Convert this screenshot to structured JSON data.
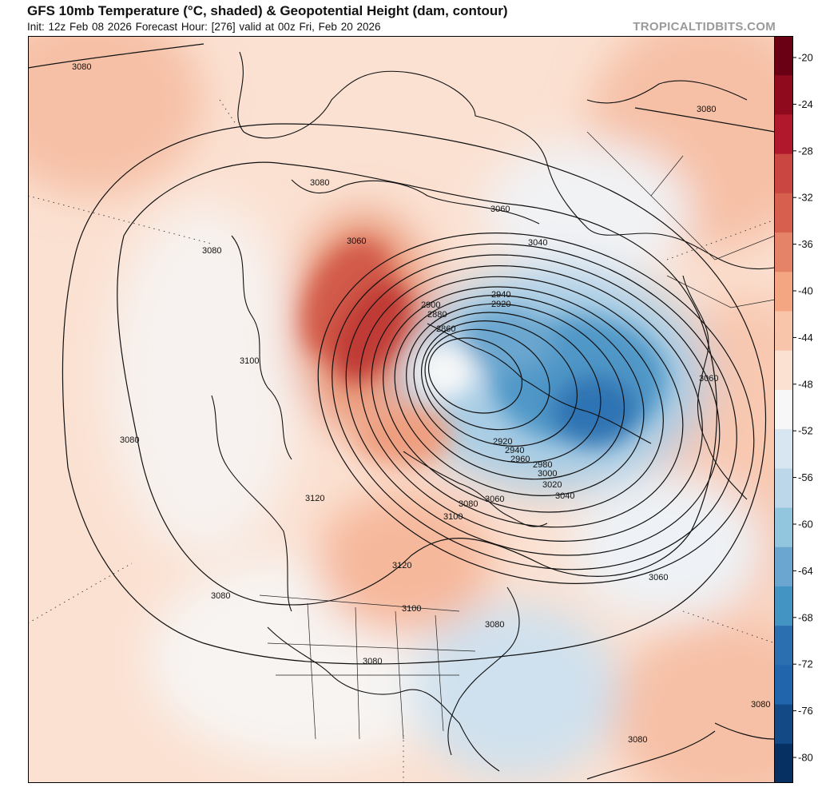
{
  "header": {
    "title": "GFS 10mb Temperature (°C, shaded) & Geopotential Height (dam, contour)",
    "subtitle": "Init: 12z Feb 08 2026   Forecast Hour: [276]   valid at 00z Fri, Feb 20 2026",
    "brand": "TROPICALTIDBITS.COM"
  },
  "colorbar": {
    "ticks": [
      "-20",
      "-24",
      "-28",
      "-32",
      "-36",
      "-40",
      "-44",
      "-48",
      "-52",
      "-56",
      "-60",
      "-64",
      "-68",
      "-72",
      "-76",
      "-80"
    ],
    "colors": [
      "#6a0013",
      "#8f0a1c",
      "#b2182b",
      "#c94740",
      "#d6604d",
      "#e58368",
      "#f4a582",
      "#f8c5ab",
      "#fbe1d2",
      "#f7f7f7",
      "#d8e6f1",
      "#bcd7ea",
      "#92c5de",
      "#6aa6cf",
      "#4393c3",
      "#2c6fb0",
      "#2166ac",
      "#134a86",
      "#053061"
    ]
  },
  "contour_labels": [
    "3080",
    "3080",
    "3080",
    "3060",
    "3080",
    "3060",
    "3040",
    "2940",
    "2920",
    "2900",
    "2880",
    "2860",
    "3100",
    "3060",
    "3080",
    "2920",
    "2940",
    "2960",
    "2980",
    "3000",
    "3020",
    "3040",
    "3120",
    "3080",
    "3060",
    "3100",
    "3120",
    "3080",
    "3060",
    "3100",
    "3080",
    "3080",
    "3080",
    "3080"
  ]
}
